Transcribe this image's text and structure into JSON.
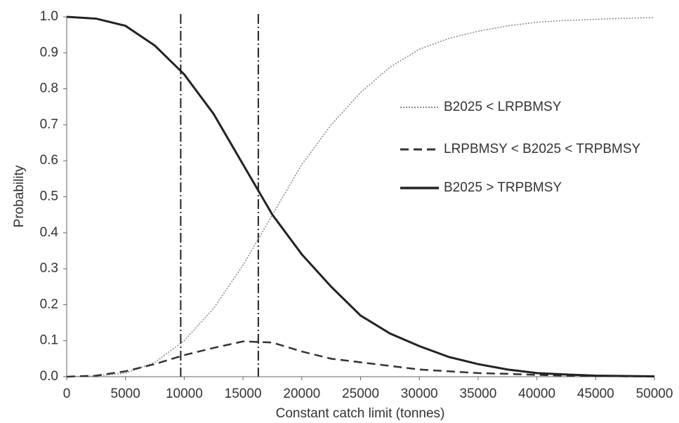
{
  "chart_data": {
    "type": "line",
    "xlabel": "Constant catch limit (tonnes)",
    "ylabel": "Probability",
    "x": [
      0,
      2500,
      5000,
      7500,
      10000,
      12500,
      15000,
      17500,
      20000,
      22500,
      25000,
      27500,
      30000,
      32500,
      35000,
      37500,
      40000,
      42500,
      45000,
      47500,
      50000
    ],
    "series": [
      {
        "name": "B2025 < LRPBMSY",
        "color": "#888888",
        "dash": "dotted",
        "values": [
          0,
          0.002,
          0.01,
          0.04,
          0.1,
          0.19,
          0.31,
          0.45,
          0.59,
          0.7,
          0.79,
          0.86,
          0.91,
          0.94,
          0.96,
          0.975,
          0.985,
          0.99,
          0.993,
          0.996,
          0.998
        ]
      },
      {
        "name": "LRPBMSY < B2025 < TRPBMSY",
        "color": "#333333",
        "dash": "dashed",
        "values": [
          0,
          0.003,
          0.015,
          0.035,
          0.06,
          0.08,
          0.098,
          0.095,
          0.07,
          0.05,
          0.04,
          0.03,
          0.02,
          0.015,
          0.01,
          0.008,
          0.005,
          0.003,
          0.002,
          0.001,
          0.001
        ]
      },
      {
        "name": "B2025 > TRPBMSY",
        "color": "#222222",
        "dash": "solid",
        "values": [
          1.0,
          0.995,
          0.975,
          0.92,
          0.84,
          0.73,
          0.59,
          0.45,
          0.34,
          0.25,
          0.17,
          0.12,
          0.085,
          0.055,
          0.035,
          0.02,
          0.01,
          0.006,
          0.003,
          0.002,
          0.001
        ]
      }
    ],
    "reference_lines_x": [
      9700,
      16300
    ],
    "xlim": [
      0,
      50000
    ],
    "xticks": [
      0,
      5000,
      10000,
      15000,
      20000,
      25000,
      30000,
      35000,
      40000,
      45000,
      50000
    ],
    "ylim": [
      0,
      1
    ],
    "yticks": [
      {
        "value": 0,
        "label": "0.0"
      },
      {
        "value": 0.1,
        "label": "0.1"
      },
      {
        "value": 0.2,
        "label": "0.2"
      },
      {
        "value": 0.3,
        "label": "0.3"
      },
      {
        "value": 0.4,
        "label": "0.4"
      },
      {
        "value": 0.5,
        "label": "0.5"
      },
      {
        "value": 0.6,
        "label": "0.6"
      },
      {
        "value": 0.7,
        "label": "0.7"
      },
      {
        "value": 0.8,
        "label": "0.8"
      },
      {
        "value": 0.9,
        "label": "0.9"
      },
      {
        "value": 1,
        "label": "1.0"
      }
    ],
    "grid": false
  }
}
